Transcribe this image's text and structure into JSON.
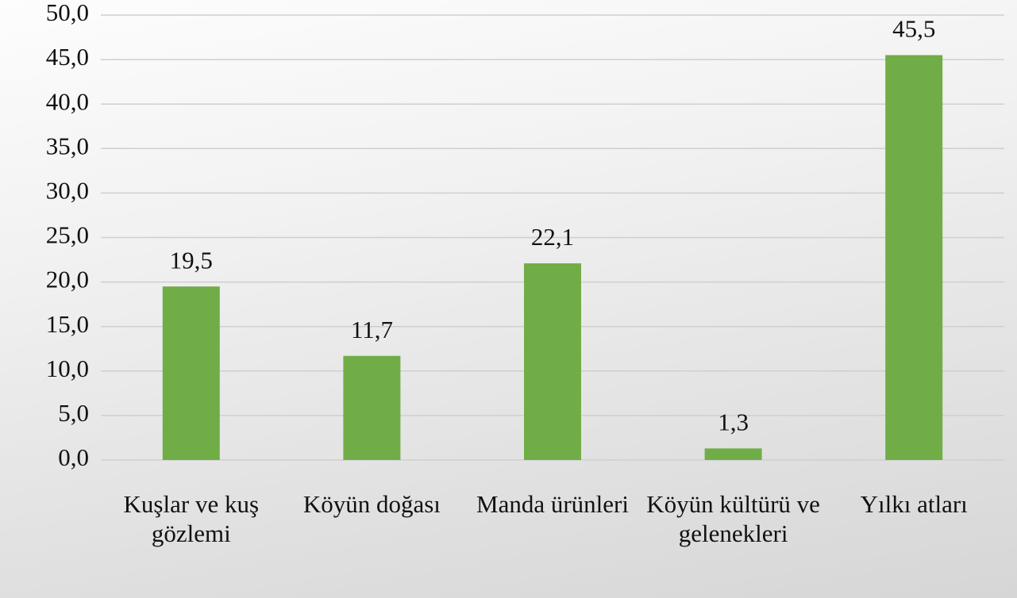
{
  "chart_data": {
    "type": "bar",
    "categories": [
      "Kuşlar ve kuş gözlemi",
      "Köyün doğası",
      "Manda ürünleri",
      "Köyün kültürü ve gelenekleri",
      "Yılkı atları"
    ],
    "values": [
      19.5,
      11.7,
      22.1,
      1.3,
      45.5
    ],
    "value_labels": [
      "19,5",
      "11,7",
      "22,1",
      "1,3",
      "45,5"
    ],
    "color": "#70ad47",
    "ylim": [
      0,
      50
    ],
    "yticks": [
      {
        "value": 0,
        "label": "0,0"
      },
      {
        "value": 5,
        "label": "5,0"
      },
      {
        "value": 10,
        "label": "10,0"
      },
      {
        "value": 15,
        "label": "15,0"
      },
      {
        "value": 20,
        "label": "20,0"
      },
      {
        "value": 25,
        "label": "25,0"
      },
      {
        "value": 30,
        "label": "30,0"
      },
      {
        "value": 35,
        "label": "35,0"
      },
      {
        "value": 40,
        "label": "40,0"
      },
      {
        "value": 45,
        "label": "45,0"
      },
      {
        "value": 50,
        "label": "50,0"
      }
    ],
    "grid": true
  }
}
